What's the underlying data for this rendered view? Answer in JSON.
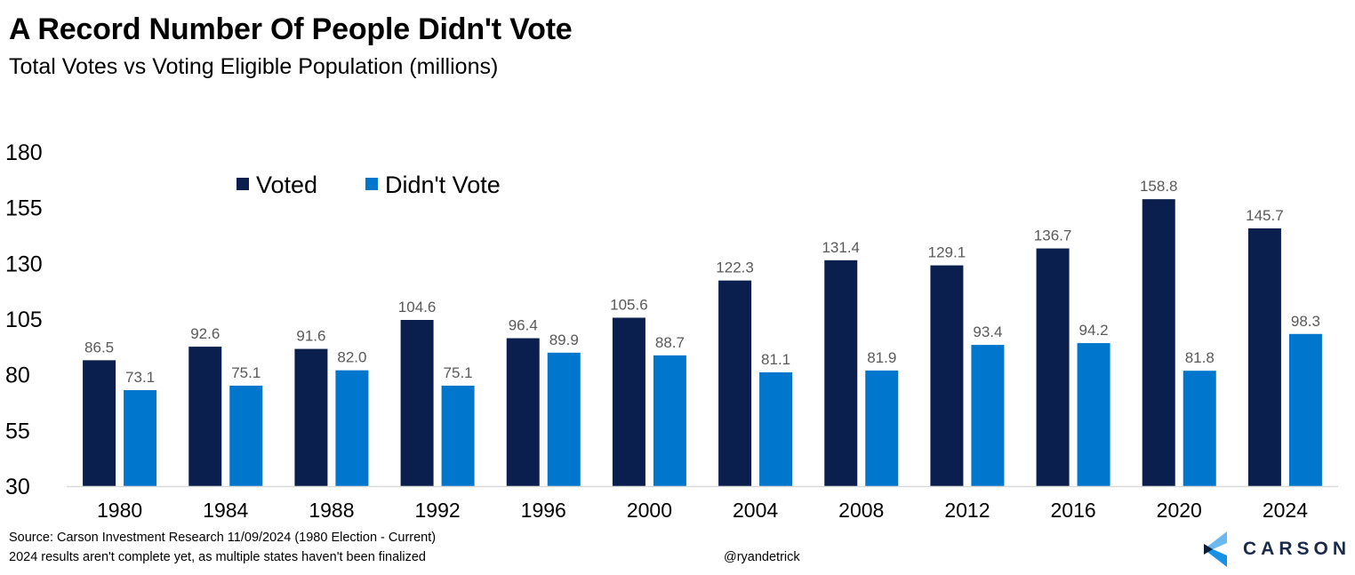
{
  "header": {
    "title": "A Record Number Of People Didn't Vote",
    "subtitle": "Total Votes vs Voting Eligible Population (millions)"
  },
  "footer": {
    "source": "Source: Carson Investment Research 11/09/2024 (1980 Election - Current)",
    "note": "2024 results aren't complete yet, as multiple states haven't been finalized",
    "handle": "@ryandetrick",
    "logo_text": "CARSON",
    "logo_icon": "carson-chevron-logo-icon"
  },
  "chart_data": {
    "type": "bar",
    "title": "A Record Number Of People Didn't Vote",
    "subtitle": "Total Votes vs Voting Eligible Population (millions)",
    "xlabel": "",
    "ylabel": "",
    "categories": [
      "1980",
      "1984",
      "1988",
      "1992",
      "1996",
      "2000",
      "2004",
      "2008",
      "2012",
      "2016",
      "2020",
      "2024"
    ],
    "series": [
      {
        "name": "Voted",
        "color": "#0b1f4e",
        "values": [
          86.5,
          92.6,
          91.6,
          104.6,
          96.4,
          105.6,
          122.3,
          131.4,
          129.1,
          136.7,
          158.8,
          145.7
        ]
      },
      {
        "name": "Didn't Vote",
        "color": "#0077cc",
        "values": [
          73.1,
          75.1,
          82.0,
          75.1,
          89.9,
          88.7,
          81.1,
          81.9,
          93.4,
          94.2,
          81.8,
          98.3
        ]
      }
    ],
    "ylim": [
      30,
      180
    ],
    "yticks": [
      30,
      55,
      80,
      105,
      130,
      155,
      180
    ],
    "grid": false,
    "legend": "top-left",
    "data_labels": true,
    "label_color": "#595959",
    "axis_color": "#d9d9d9"
  }
}
